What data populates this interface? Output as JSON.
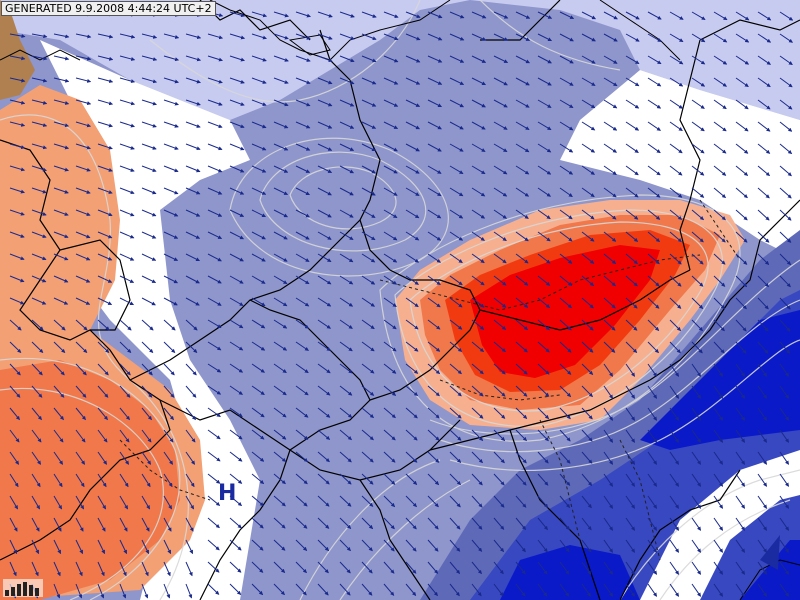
{
  "map": {
    "generated_label": "GENERATED 9.9.2008 4:44:24 UTC+2",
    "pressure_center_label": "H",
    "label_color": "#1a2aa0",
    "palette": {
      "strong_negative": "#0a1ac8",
      "negative": "#3848c0",
      "mid_negative": "#5e6ab8",
      "weak_negative": "#8e96cc",
      "faint_negative": "#c8cbf0",
      "neutral": "#ffffff",
      "weak_positive": "#f3a074",
      "positive": "#f0784a",
      "strong_positive": "#f23a10",
      "peak": "#f00000",
      "terrain_corner": "#b08050",
      "isolines": "#d8d8d8",
      "borders": "#000000",
      "wind_arrows": "#1a2a8c"
    },
    "icons": [
      "legend-bars-icon"
    ]
  }
}
